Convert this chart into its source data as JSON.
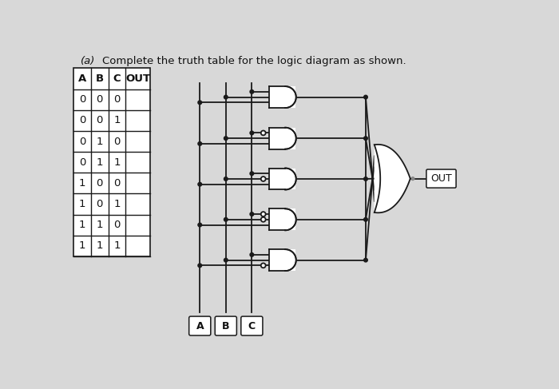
{
  "title_a": "(a)",
  "title_text": "Complete the truth table for the logic diagram as shown.",
  "background_color": "#d8d8d8",
  "table_headers": [
    "A",
    "B",
    "C",
    "OUT"
  ],
  "table_rows": [
    [
      "0",
      "0",
      "0",
      ""
    ],
    [
      "0",
      "0",
      "1",
      ""
    ],
    [
      "0",
      "1",
      "0",
      ""
    ],
    [
      "0",
      "1",
      "1",
      ""
    ],
    [
      "1",
      "0",
      "0",
      ""
    ],
    [
      "1",
      "0",
      "1",
      ""
    ],
    [
      "1",
      "1",
      "0",
      ""
    ],
    [
      "1",
      "1",
      "1",
      ""
    ]
  ],
  "line_color": "#1a1a1a",
  "gate_fill": "#ffffff",
  "dot_color": "#1a1a1a",
  "out_label": "OUT",
  "input_labels": [
    "A",
    "B",
    "C"
  ],
  "bubbles": [
    [
      false,
      false,
      false
    ],
    [
      false,
      false,
      true
    ],
    [
      false,
      true,
      false
    ],
    [
      false,
      true,
      true
    ],
    [
      true,
      false,
      false
    ]
  ]
}
